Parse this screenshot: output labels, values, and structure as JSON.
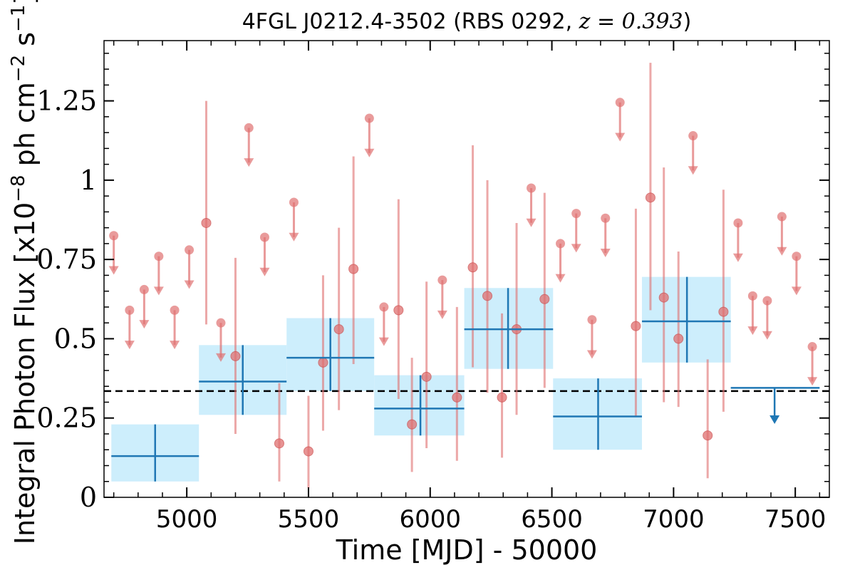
{
  "chart_data": {
    "type": "scatter",
    "title": "4FGL J0212.4-3502 (RBS 0292, ",
    "title_math": "z = 0.393",
    "title_end": ")",
    "xlabel": "Time [MJD] - 50000",
    "ylabel": "Integral Photon Flux [x10",
    "ylabel_exp1": "−8",
    "ylabel_mid": " ph cm",
    "ylabel_exp2": "−2",
    "ylabel_mid2": " s",
    "ylabel_exp3": "−1",
    "ylabel_end": "]",
    "xlim": [
      4660,
      7640
    ],
    "ylim": [
      0,
      1.44
    ],
    "x_ticks": [
      5000,
      5500,
      6000,
      6500,
      7000,
      7500
    ],
    "x_tick_labels": [
      "5000",
      "5500",
      "6000",
      "6500",
      "7000",
      "7500"
    ],
    "y_ticks": [
      0,
      0.25,
      0.5,
      0.75,
      1.0,
      1.25
    ],
    "y_tick_labels": [
      "0",
      "0.25",
      "0.5",
      "0.75",
      "1",
      "1.25"
    ],
    "grid": false,
    "colors": {
      "points": "#e07070",
      "bins": "#1f77b4",
      "bin_fill": "#cdeefc",
      "mean_line": "#000000"
    },
    "mean_flux": 0.335,
    "short_bins": {
      "detections": [
        {
          "x": 5080,
          "y": 0.865,
          "ylo": 0.545,
          "yhi": 1.25
        },
        {
          "x": 5200,
          "y": 0.445,
          "ylo": 0.2,
          "yhi": 0.755
        },
        {
          "x": 5380,
          "y": 0.17,
          "ylo": 0.05,
          "yhi": 0.36
        },
        {
          "x": 5500,
          "y": 0.145,
          "ylo": 0.03,
          "yhi": 0.32
        },
        {
          "x": 5560,
          "y": 0.425,
          "ylo": 0.21,
          "yhi": 0.7
        },
        {
          "x": 5625,
          "y": 0.53,
          "ylo": 0.275,
          "yhi": 0.85
        },
        {
          "x": 5685,
          "y": 0.72,
          "ylo": 0.42,
          "yhi": 1.075
        },
        {
          "x": 5870,
          "y": 0.59,
          "ylo": 0.31,
          "yhi": 0.94
        },
        {
          "x": 5925,
          "y": 0.23,
          "ylo": 0.08,
          "yhi": 0.44
        },
        {
          "x": 5985,
          "y": 0.38,
          "ylo": 0.155,
          "yhi": 0.68
        },
        {
          "x": 6110,
          "y": 0.315,
          "ylo": 0.115,
          "yhi": 0.6
        },
        {
          "x": 6175,
          "y": 0.725,
          "ylo": 0.41,
          "yhi": 1.11
        },
        {
          "x": 6235,
          "y": 0.635,
          "ylo": 0.33,
          "yhi": 1.0
        },
        {
          "x": 6295,
          "y": 0.315,
          "ylo": 0.125,
          "yhi": 0.58
        },
        {
          "x": 6355,
          "y": 0.53,
          "ylo": 0.26,
          "yhi": 0.865
        },
        {
          "x": 6470,
          "y": 0.625,
          "ylo": 0.345,
          "yhi": 0.96
        },
        {
          "x": 6845,
          "y": 0.54,
          "ylo": 0.255,
          "yhi": 0.91
        },
        {
          "x": 6905,
          "y": 0.945,
          "ylo": 0.59,
          "yhi": 1.37
        },
        {
          "x": 6960,
          "y": 0.63,
          "ylo": 0.3,
          "yhi": 1.04
        },
        {
          "x": 7020,
          "y": 0.5,
          "ylo": 0.285,
          "yhi": 0.775
        },
        {
          "x": 7140,
          "y": 0.195,
          "ylo": 0.06,
          "yhi": 0.435
        },
        {
          "x": 7205,
          "y": 0.585,
          "ylo": 0.27,
          "yhi": 0.97
        }
      ],
      "upper_limits": [
        {
          "x": 4700,
          "y": 0.825
        },
        {
          "x": 4765,
          "y": 0.59
        },
        {
          "x": 4825,
          "y": 0.655
        },
        {
          "x": 4885,
          "y": 0.76
        },
        {
          "x": 4950,
          "y": 0.59
        },
        {
          "x": 5010,
          "y": 0.78
        },
        {
          "x": 5140,
          "y": 0.55
        },
        {
          "x": 5255,
          "y": 1.165
        },
        {
          "x": 5320,
          "y": 0.82
        },
        {
          "x": 5440,
          "y": 0.93
        },
        {
          "x": 5750,
          "y": 1.195
        },
        {
          "x": 5810,
          "y": 0.6
        },
        {
          "x": 6050,
          "y": 0.685
        },
        {
          "x": 6415,
          "y": 0.975
        },
        {
          "x": 6535,
          "y": 0.8
        },
        {
          "x": 6600,
          "y": 0.895
        },
        {
          "x": 6665,
          "y": 0.56
        },
        {
          "x": 6720,
          "y": 0.88
        },
        {
          "x": 6780,
          "y": 1.245
        },
        {
          "x": 7080,
          "y": 1.14
        },
        {
          "x": 7265,
          "y": 0.865
        },
        {
          "x": 7325,
          "y": 0.635
        },
        {
          "x": 7385,
          "y": 0.62
        },
        {
          "x": 7445,
          "y": 0.885
        },
        {
          "x": 7505,
          "y": 0.76
        },
        {
          "x": 7570,
          "y": 0.475
        }
      ]
    },
    "long_bins": {
      "detections": [
        {
          "x0": 4690,
          "x1": 5050,
          "xc": 4870,
          "y": 0.13,
          "ylo": 0.05,
          "yhi": 0.23
        },
        {
          "x0": 5050,
          "x1": 5410,
          "xc": 5230,
          "y": 0.365,
          "ylo": 0.26,
          "yhi": 0.48
        },
        {
          "x0": 5410,
          "x1": 5770,
          "xc": 5590,
          "y": 0.44,
          "ylo": 0.335,
          "yhi": 0.565
        },
        {
          "x0": 5770,
          "x1": 6140,
          "xc": 5960,
          "y": 0.28,
          "ylo": 0.195,
          "yhi": 0.385
        },
        {
          "x0": 6140,
          "x1": 6505,
          "xc": 6320,
          "y": 0.53,
          "ylo": 0.405,
          "yhi": 0.66
        },
        {
          "x0": 6505,
          "x1": 6870,
          "xc": 6690,
          "y": 0.255,
          "ylo": 0.15,
          "yhi": 0.375
        },
        {
          "x0": 6870,
          "x1": 7235,
          "xc": 7055,
          "y": 0.555,
          "ylo": 0.425,
          "yhi": 0.695
        }
      ],
      "upper_limits": [
        {
          "x0": 7235,
          "x1": 7600,
          "xc": 7415,
          "y": 0.345
        }
      ]
    }
  }
}
